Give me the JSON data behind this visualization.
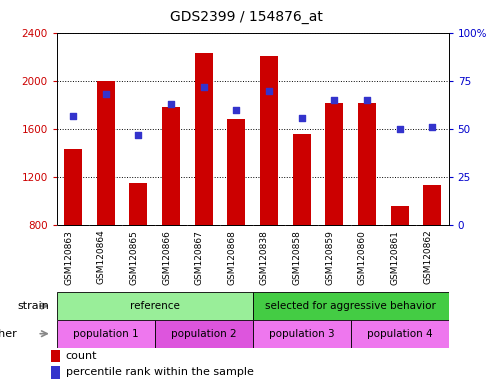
{
  "title": "GDS2399 / 154876_at",
  "samples": [
    "GSM120863",
    "GSM120864",
    "GSM120865",
    "GSM120866",
    "GSM120867",
    "GSM120868",
    "GSM120838",
    "GSM120858",
    "GSM120859",
    "GSM120860",
    "GSM120861",
    "GSM120862"
  ],
  "counts": [
    1430,
    2000,
    1150,
    1780,
    2230,
    1680,
    2210,
    1560,
    1820,
    1820,
    960,
    1130
  ],
  "percentiles": [
    57,
    68,
    47,
    63,
    72,
    60,
    70,
    56,
    65,
    65,
    50,
    51
  ],
  "ylim_left": [
    800,
    2400
  ],
  "ylim_right": [
    0,
    100
  ],
  "yticks_left": [
    800,
    1200,
    1600,
    2000,
    2400
  ],
  "yticks_right": [
    0,
    25,
    50,
    75,
    100
  ],
  "bar_color": "#cc0000",
  "dot_color": "#3333cc",
  "strain_groups": [
    {
      "label": "reference",
      "start": 0,
      "end": 6,
      "color": "#99ee99"
    },
    {
      "label": "selected for aggressive behavior",
      "start": 6,
      "end": 12,
      "color": "#44cc44"
    }
  ],
  "other_groups": [
    {
      "label": "population 1",
      "start": 0,
      "end": 3,
      "color": "#ee77ee"
    },
    {
      "label": "population 2",
      "start": 3,
      "end": 6,
      "color": "#dd55dd"
    },
    {
      "label": "population 3",
      "start": 6,
      "end": 9,
      "color": "#ee77ee"
    },
    {
      "label": "population 4",
      "start": 9,
      "end": 12,
      "color": "#ee77ee"
    }
  ],
  "strain_label": "strain",
  "other_label": "other",
  "legend_count_label": "count",
  "legend_pct_label": "percentile rank within the sample",
  "axis_color_left": "#cc0000",
  "axis_color_right": "#0000cc",
  "background_color": "#ffffff",
  "tick_area_color": "#cccccc",
  "figsize": [
    4.93,
    3.84
  ],
  "dpi": 100
}
